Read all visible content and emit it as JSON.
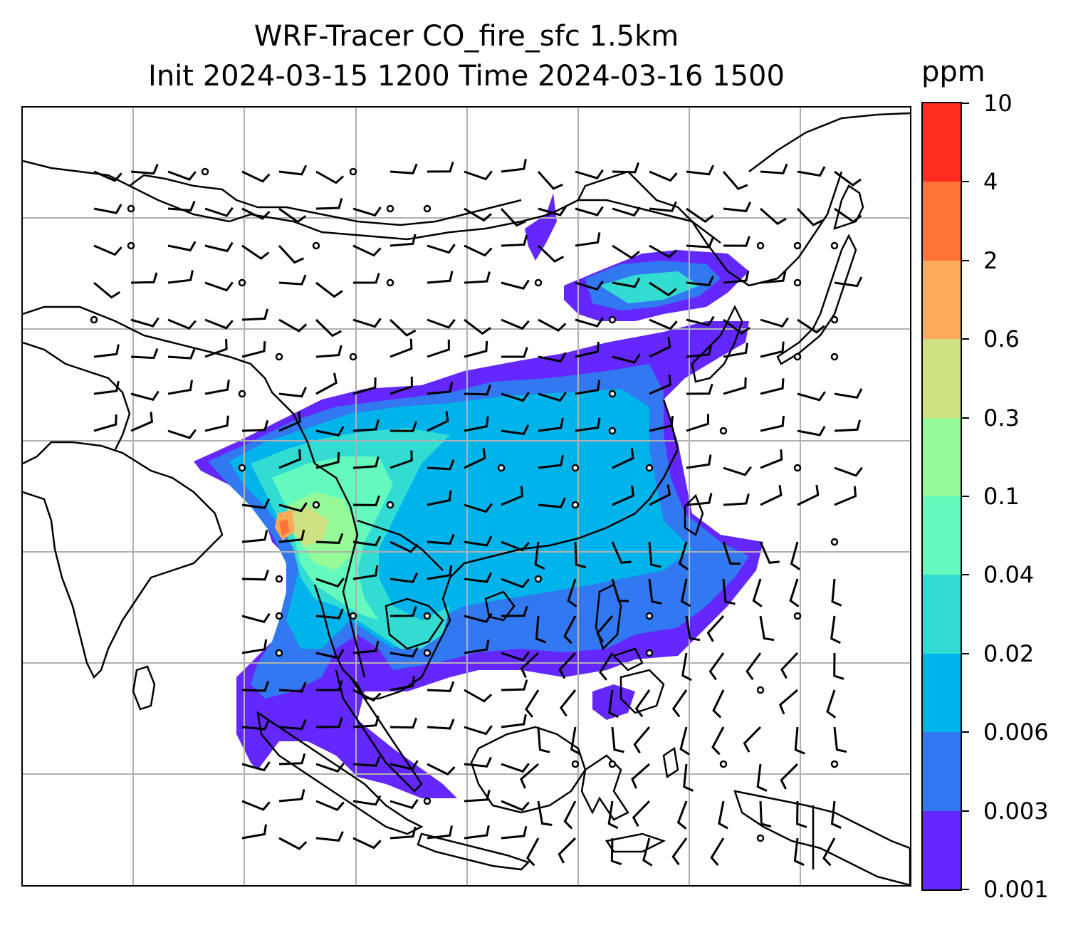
{
  "title_line1": "WRF-Tracer CO_fire_sfc 1.5km",
  "title_line2": "Init 2024-03-15 1200 Time 2024-03-16 1500",
  "colorbar": {
    "unit": "ppm",
    "levels": [
      "0.001",
      "0.003",
      "0.006",
      "0.02",
      "0.04",
      "0.1",
      "0.3",
      "0.6",
      "2",
      "4",
      "10"
    ],
    "colors": [
      "#6428ff",
      "#3278f0",
      "#00b4eb",
      "#32dcd2",
      "#64fabe",
      "#96fa96",
      "#cde182",
      "#ffaa5a",
      "#ff7337",
      "#ff2d1e"
    ]
  },
  "map": {
    "gridlines": true,
    "features": [
      "coastlines",
      "country-borders",
      "wind-barbs",
      "calm-circles",
      "filled-contours"
    ]
  }
}
